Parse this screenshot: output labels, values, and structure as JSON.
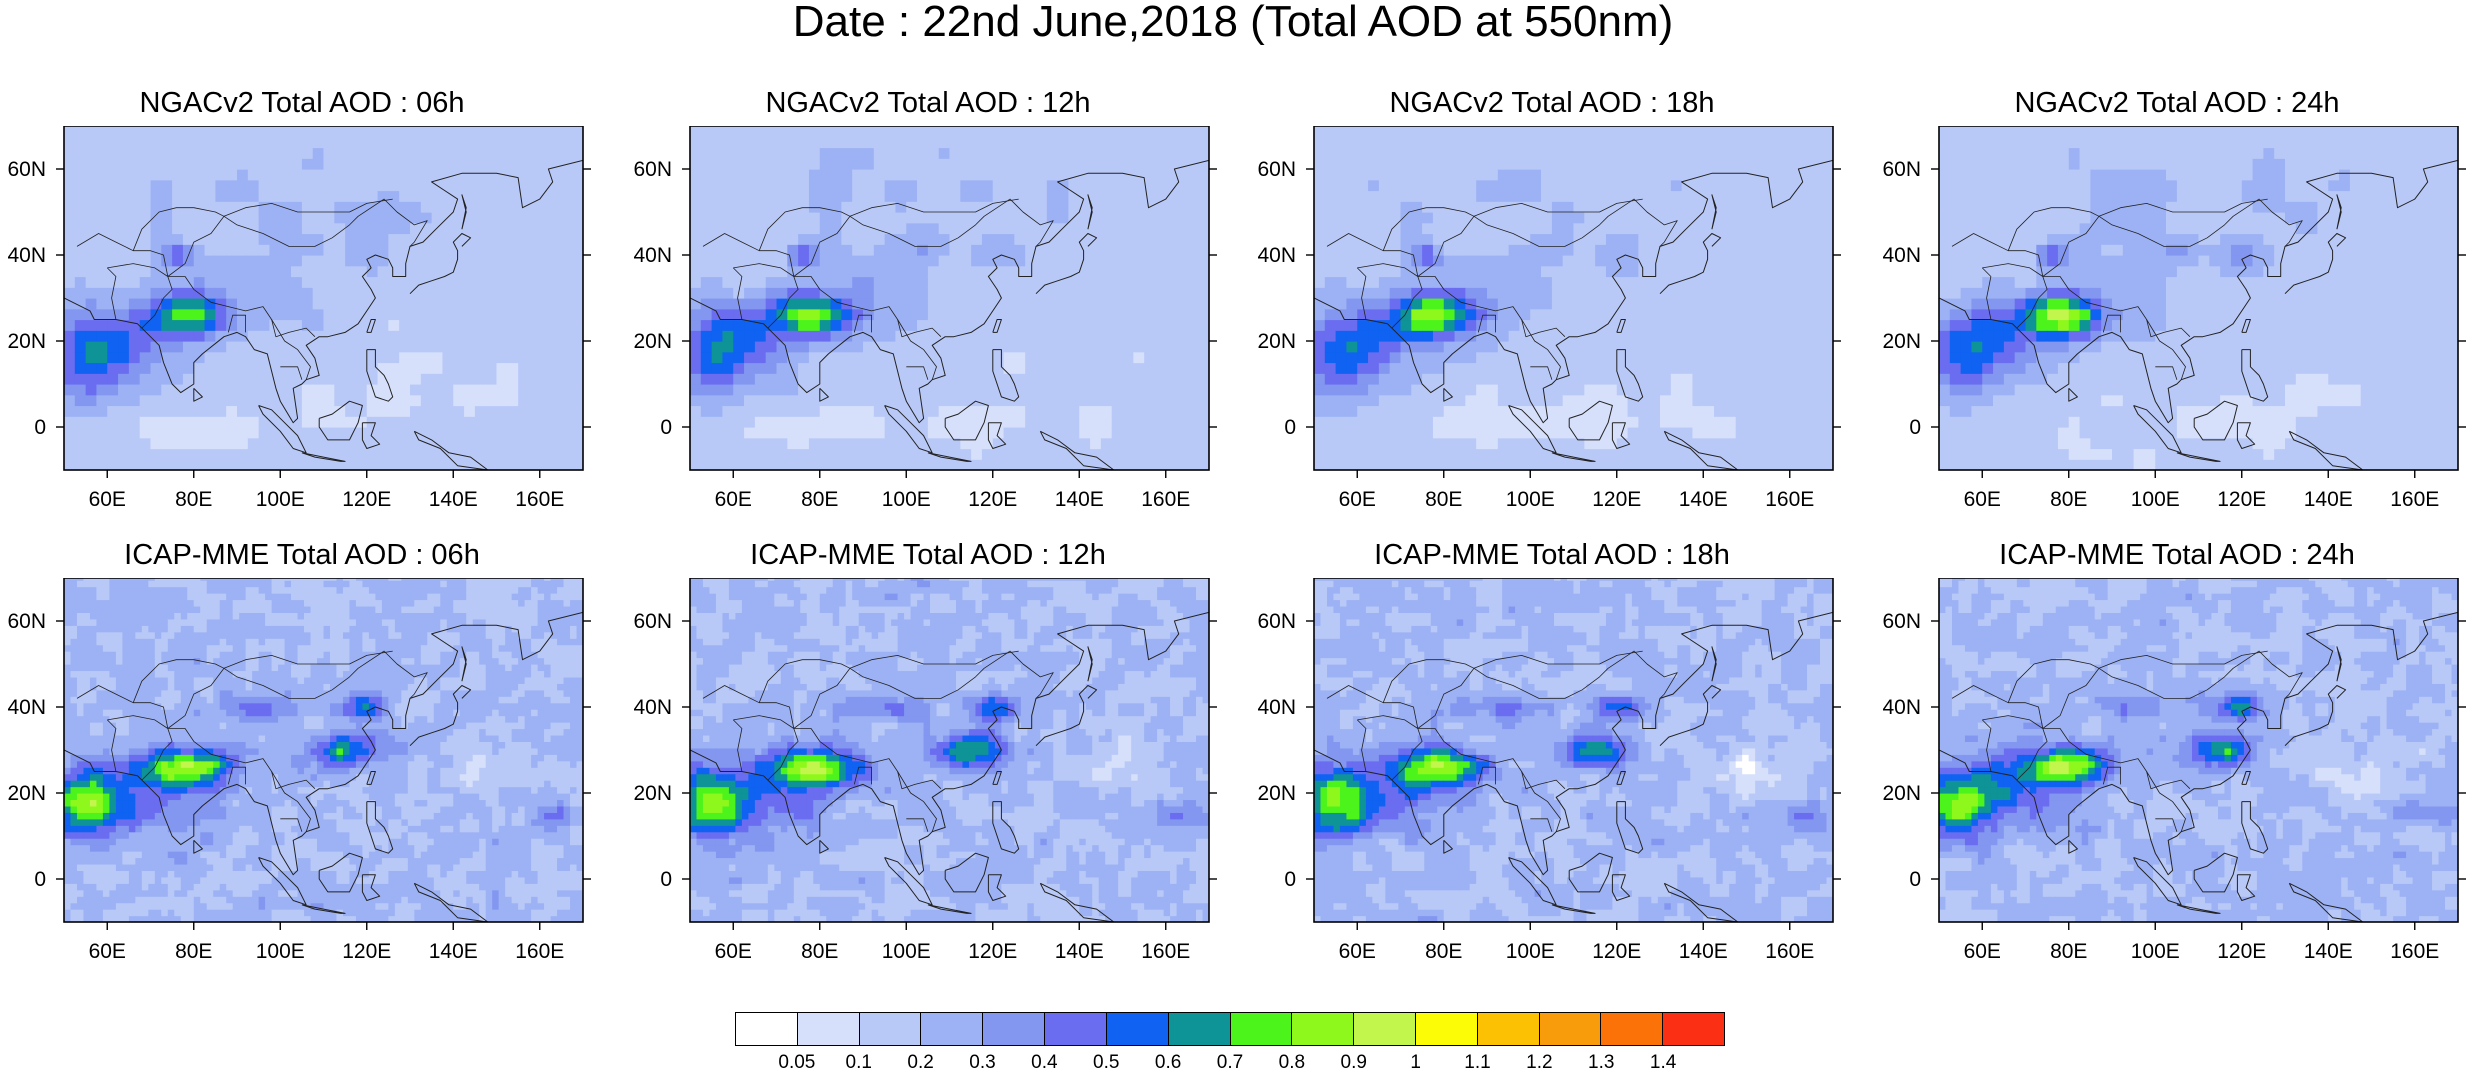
{
  "title": "Date : 22nd June,2018 (Total AOD at 550nm)",
  "panels": [
    {
      "title": "NGACv2 Total AOD : 06h",
      "model": "NGACv2",
      "hour": "06h"
    },
    {
      "title": "NGACv2 Total AOD : 12h",
      "model": "NGACv2",
      "hour": "12h"
    },
    {
      "title": "NGACv2 Total AOD : 18h",
      "model": "NGACv2",
      "hour": "18h"
    },
    {
      "title": "NGACv2 Total AOD : 24h",
      "model": "NGACv2",
      "hour": "24h"
    },
    {
      "title": "ICAP-MME Total AOD : 06h",
      "model": "ICAP-MME",
      "hour": "06h"
    },
    {
      "title": "ICAP-MME Total AOD : 12h",
      "model": "ICAP-MME",
      "hour": "12h"
    },
    {
      "title": "ICAP-MME Total AOD : 18h",
      "model": "ICAP-MME",
      "hour": "18h"
    },
    {
      "title": "ICAP-MME Total AOD : 24h",
      "model": "ICAP-MME",
      "hour": "24h"
    }
  ],
  "axes": {
    "lon_range": [
      50,
      170
    ],
    "lat_range": [
      -10,
      70
    ],
    "lon_ticks": [
      60,
      80,
      100,
      120,
      140,
      160
    ],
    "lon_labels": [
      "60E",
      "80E",
      "100E",
      "120E",
      "140E",
      "160E"
    ],
    "lat_ticks": [
      0,
      20,
      40,
      60
    ],
    "lat_labels": [
      "0",
      "20N",
      "40N",
      "60N"
    ]
  },
  "colorbar": {
    "labels": [
      "0.05",
      "0.1",
      "0.2",
      "0.3",
      "0.4",
      "0.5",
      "0.6",
      "0.7",
      "0.8",
      "0.9",
      "1",
      "1.1",
      "1.2",
      "1.3",
      "1.4"
    ],
    "colors": [
      "#ffffff",
      "#d6e0fb",
      "#b9c9f7",
      "#9db2f4",
      "#8397f0",
      "#6b6df0",
      "#0f62f2",
      "#0e9397",
      "#4cf41c",
      "#8ef81c",
      "#c3f64c",
      "#fbfc06",
      "#fbc102",
      "#f99c0b",
      "#fb7208",
      "#fa2f14"
    ]
  }
}
